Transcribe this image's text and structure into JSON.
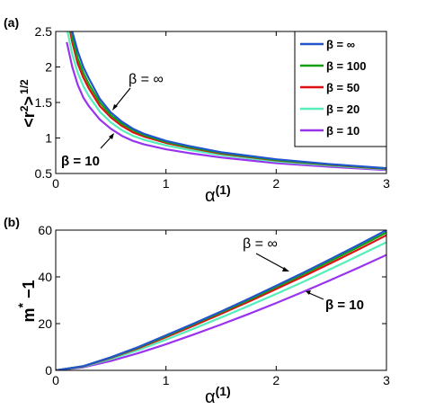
{
  "legend": {
    "entries": [
      {
        "label": "β = ∞",
        "color": "#2255cc"
      },
      {
        "label": "β = 100",
        "color": "#11a011"
      },
      {
        "label": "β = 50",
        "color": "#dd1111"
      },
      {
        "label": "β = 20",
        "color": "#55eebb"
      },
      {
        "label": "β = 10",
        "color": "#9933ee"
      }
    ]
  },
  "chart_data": [
    {
      "type": "line",
      "panel_label": "(a)",
      "ylabel": "<r",
      "ylabel_sup1": "2",
      "ylabel_mid": ">",
      "ylabel_sup2": "1/2",
      "xlabel": "α",
      "xlabel_sup": "(1)",
      "xlim": [
        0,
        3
      ],
      "ylim": [
        0.5,
        2.5
      ],
      "xticks": [
        "0",
        "1",
        "2",
        "3"
      ],
      "yticks": [
        "0.5",
        "1",
        "1.5",
        "2",
        "2.5"
      ],
      "annotations": [
        {
          "text": "β = ∞",
          "points_to": [
            0.52,
            1.19
          ]
        },
        {
          "text": "β = 10",
          "points_to": [
            0.5,
            0.98
          ]
        }
      ],
      "legend_position": "top-right",
      "x": [
        0.1,
        0.15,
        0.2,
        0.25,
        0.3,
        0.4,
        0.5,
        0.6,
        0.7,
        0.8,
        1.0,
        1.2,
        1.5,
        2.0,
        2.5,
        3.0
      ],
      "series": [
        {
          "name": "β = ∞",
          "values": [
            2.95,
            2.5,
            2.22,
            2.0,
            1.84,
            1.55,
            1.36,
            1.23,
            1.13,
            1.06,
            0.96,
            0.89,
            0.8,
            0.7,
            0.63,
            0.575
          ]
        },
        {
          "name": "β = 100",
          "values": [
            2.85,
            2.42,
            2.12,
            1.92,
            1.76,
            1.5,
            1.32,
            1.2,
            1.11,
            1.04,
            0.945,
            0.875,
            0.79,
            0.69,
            0.625,
            0.57
          ]
        },
        {
          "name": "β = 50",
          "values": [
            2.75,
            2.35,
            2.05,
            1.85,
            1.7,
            1.45,
            1.29,
            1.17,
            1.08,
            1.02,
            0.93,
            0.865,
            0.78,
            0.685,
            0.62,
            0.565
          ]
        },
        {
          "name": "β = 20",
          "values": [
            2.55,
            2.18,
            1.92,
            1.73,
            1.59,
            1.37,
            1.22,
            1.11,
            1.03,
            0.975,
            0.895,
            0.835,
            0.76,
            0.67,
            0.61,
            0.558
          ]
        },
        {
          "name": "β = 10",
          "values": [
            2.35,
            2.0,
            1.75,
            1.57,
            1.45,
            1.26,
            1.13,
            1.03,
            0.96,
            0.91,
            0.84,
            0.79,
            0.725,
            0.645,
            0.592,
            0.548
          ]
        }
      ]
    },
    {
      "type": "line",
      "panel_label": "(b)",
      "ylabel": "m",
      "ylabel_sup": "*",
      "ylabel_tail": " −1",
      "xlabel": "α",
      "xlabel_sup": "(1)",
      "xlim": [
        0,
        3
      ],
      "ylim": [
        0,
        60
      ],
      "xticks": [
        "0",
        "1",
        "2",
        "3"
      ],
      "yticks": [
        "0",
        "20",
        "40",
        "60"
      ],
      "annotations": [
        {
          "text": "β = ∞",
          "points_to": [
            2.12,
            40
          ]
        },
        {
          "text": "β = 10",
          "points_to": [
            2.3,
            33
          ]
        }
      ],
      "x": [
        0,
        0.25,
        0.5,
        0.75,
        1.0,
        1.25,
        1.5,
        1.75,
        2.0,
        2.25,
        2.5,
        2.75,
        3.0
      ],
      "series": [
        {
          "name": "β = ∞",
          "values": [
            0,
            1.8,
            5.6,
            10.0,
            15.0,
            20.0,
            25.2,
            30.6,
            36.2,
            41.9,
            47.8,
            53.8,
            60.0
          ]
        },
        {
          "name": "β = 100",
          "values": [
            0,
            1.75,
            5.5,
            9.8,
            14.7,
            19.7,
            24.8,
            30.1,
            35.6,
            41.2,
            47.0,
            52.9,
            59.0
          ]
        },
        {
          "name": "β = 50",
          "values": [
            0,
            1.7,
            5.3,
            9.5,
            14.2,
            19.1,
            24.2,
            29.4,
            34.8,
            40.3,
            46.0,
            51.8,
            57.8
          ]
        },
        {
          "name": "β = 20",
          "values": [
            0,
            1.55,
            4.8,
            8.7,
            13.1,
            17.8,
            22.6,
            27.6,
            32.7,
            38.0,
            43.5,
            49.1,
            54.8
          ]
        },
        {
          "name": "β = 10",
          "values": [
            0,
            1.3,
            4.0,
            7.4,
            11.2,
            15.3,
            19.6,
            24.1,
            28.8,
            33.7,
            38.8,
            44.0,
            49.4
          ]
        }
      ]
    }
  ]
}
